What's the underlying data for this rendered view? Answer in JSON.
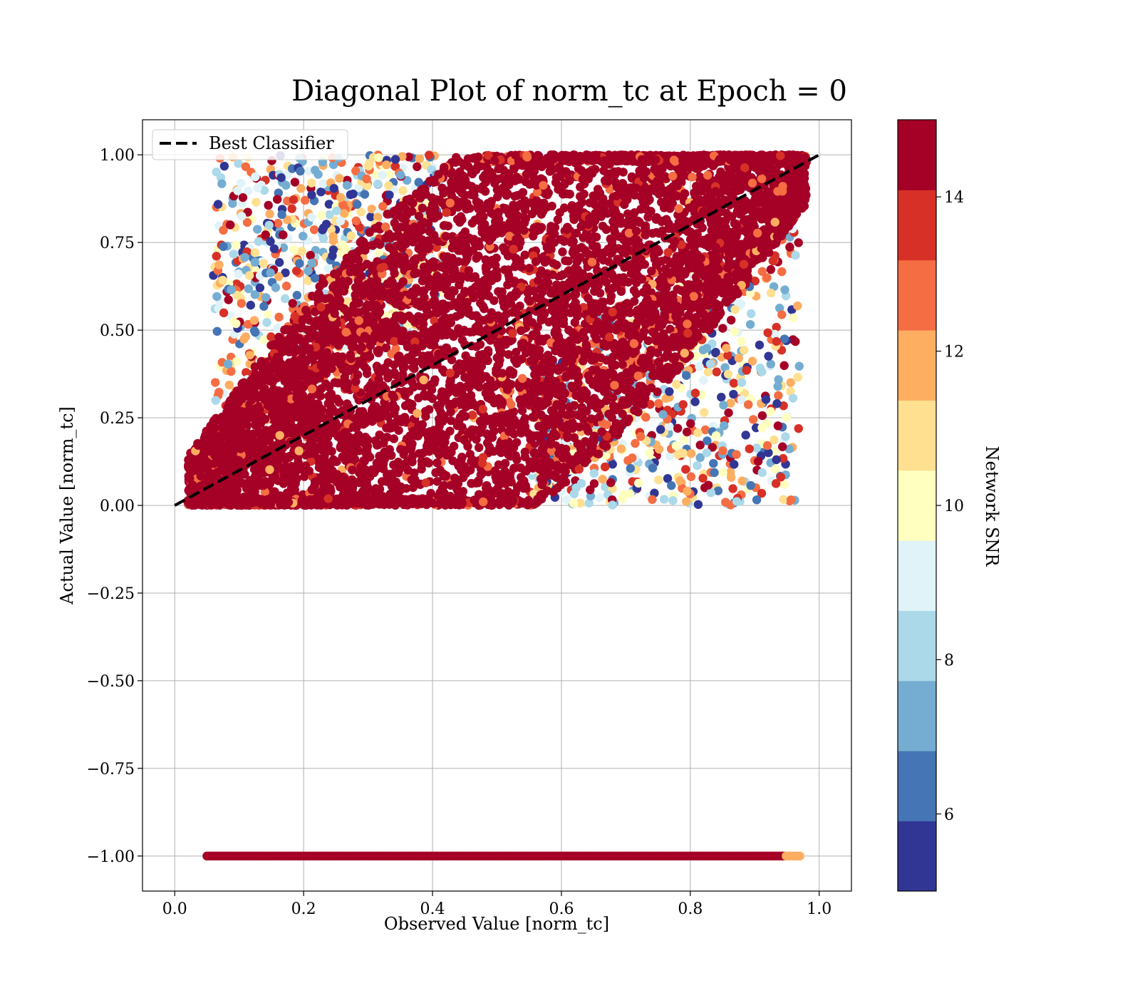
{
  "chart_data": {
    "type": "scatter",
    "title": "Diagonal Plot of norm_tc at Epoch = 0",
    "xlabel": "Observed Value [norm_tc]",
    "ylabel": "Actual Value [norm_tc]",
    "xlim": [
      -0.05,
      1.05
    ],
    "ylim": [
      -1.1,
      1.1
    ],
    "xticks": [
      0.0,
      0.2,
      0.4,
      0.6,
      0.8,
      1.0
    ],
    "xtick_labels": [
      "0.0",
      "0.2",
      "0.4",
      "0.6",
      "0.8",
      "1.0"
    ],
    "yticks": [
      1.0,
      0.75,
      0.5,
      0.25,
      0.0,
      -0.25,
      -0.5,
      -0.75,
      -1.0
    ],
    "ytick_labels": [
      "1.00",
      "0.75",
      "0.50",
      "0.25",
      "0.00",
      "−0.25",
      "−0.50",
      "−0.75",
      "−1.00"
    ],
    "grid": true,
    "legend": {
      "placement": "upper-left",
      "entries": [
        {
          "label": "Best Classifier",
          "style": "dashed",
          "color": "#000000"
        }
      ]
    },
    "reference_line": {
      "name": "Best Classifier",
      "x": [
        0.0,
        1.0
      ],
      "y": [
        0.0,
        1.0
      ],
      "style": "dashed",
      "color": "#000000"
    },
    "point_clouds": [
      {
        "description": "dense region around diagonal",
        "x_range": [
          0.02,
          0.98
        ],
        "y_range": [
          0.0,
          1.0
        ],
        "dominant_snr": 15
      },
      {
        "description": "horizontal band at y = -1",
        "x_range": [
          0.05,
          0.97
        ],
        "y": -1.0,
        "dominant_snr": 15
      }
    ],
    "colorbar": {
      "label": "Network SNR",
      "range": [
        5,
        15
      ],
      "ticks": [
        6,
        8,
        10,
        12,
        14
      ],
      "tick_labels": [
        "6",
        "8",
        "10",
        "12",
        "14"
      ],
      "colors": [
        "#313695",
        "#4575b4",
        "#74add1",
        "#abd9e9",
        "#e0f3f8",
        "#ffffbf",
        "#fee090",
        "#fdae61",
        "#f46d43",
        "#d73027",
        "#a50026"
      ]
    }
  }
}
